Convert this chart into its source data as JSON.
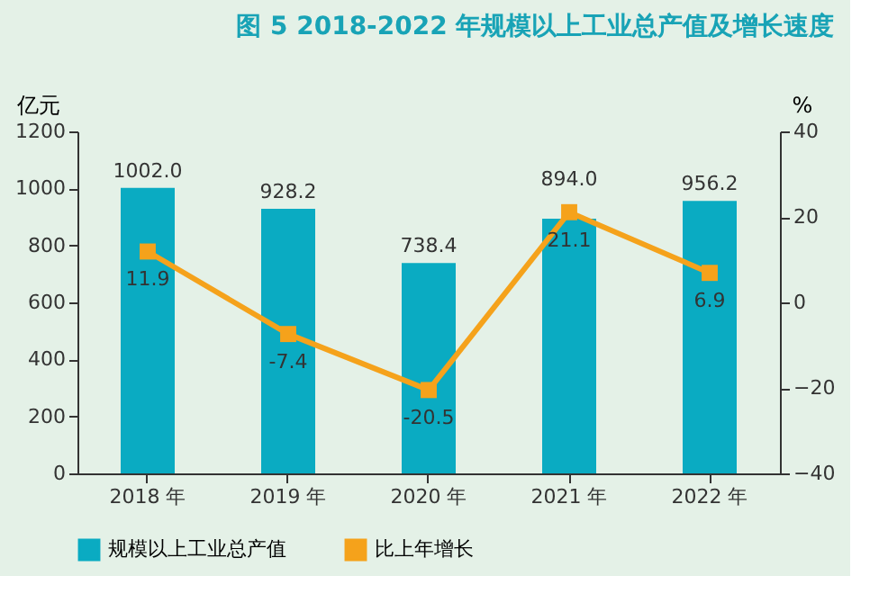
{
  "chart_data": {
    "type": "bar",
    "title": "图 5  2018-2022 年规模以上工业总产值及增长速度",
    "ylabel": "亿元",
    "y2label": "%",
    "categories": [
      "2018 年",
      "2019 年",
      "2020 年",
      "2021 年",
      "2022 年"
    ],
    "series": [
      {
        "name": "规模以上工业总产值",
        "color": "#0aabc2",
        "values": [
          1002.0,
          928.2,
          738.4,
          894.0,
          956.2
        ],
        "value_labels": [
          "1002.0",
          "928.2",
          "738.4",
          "894.0",
          "956.2"
        ]
      },
      {
        "name": "比上年增长",
        "type": "line",
        "axis": "y2",
        "color": "#f5a21b",
        "values": [
          11.9,
          -7.4,
          -20.5,
          21.1,
          6.9
        ],
        "value_labels": [
          "11.9",
          "-7.4",
          "-20.5",
          "21.1",
          "6.9"
        ]
      }
    ],
    "ylim": [
      0,
      1200
    ],
    "yticks": [
      0,
      200,
      400,
      600,
      800,
      1000,
      1200
    ],
    "y2lim": [
      -40,
      40
    ],
    "y2ticks": [
      -40,
      -20,
      0,
      20,
      40
    ],
    "marker": "square",
    "grid": false,
    "legend": "bottom"
  }
}
